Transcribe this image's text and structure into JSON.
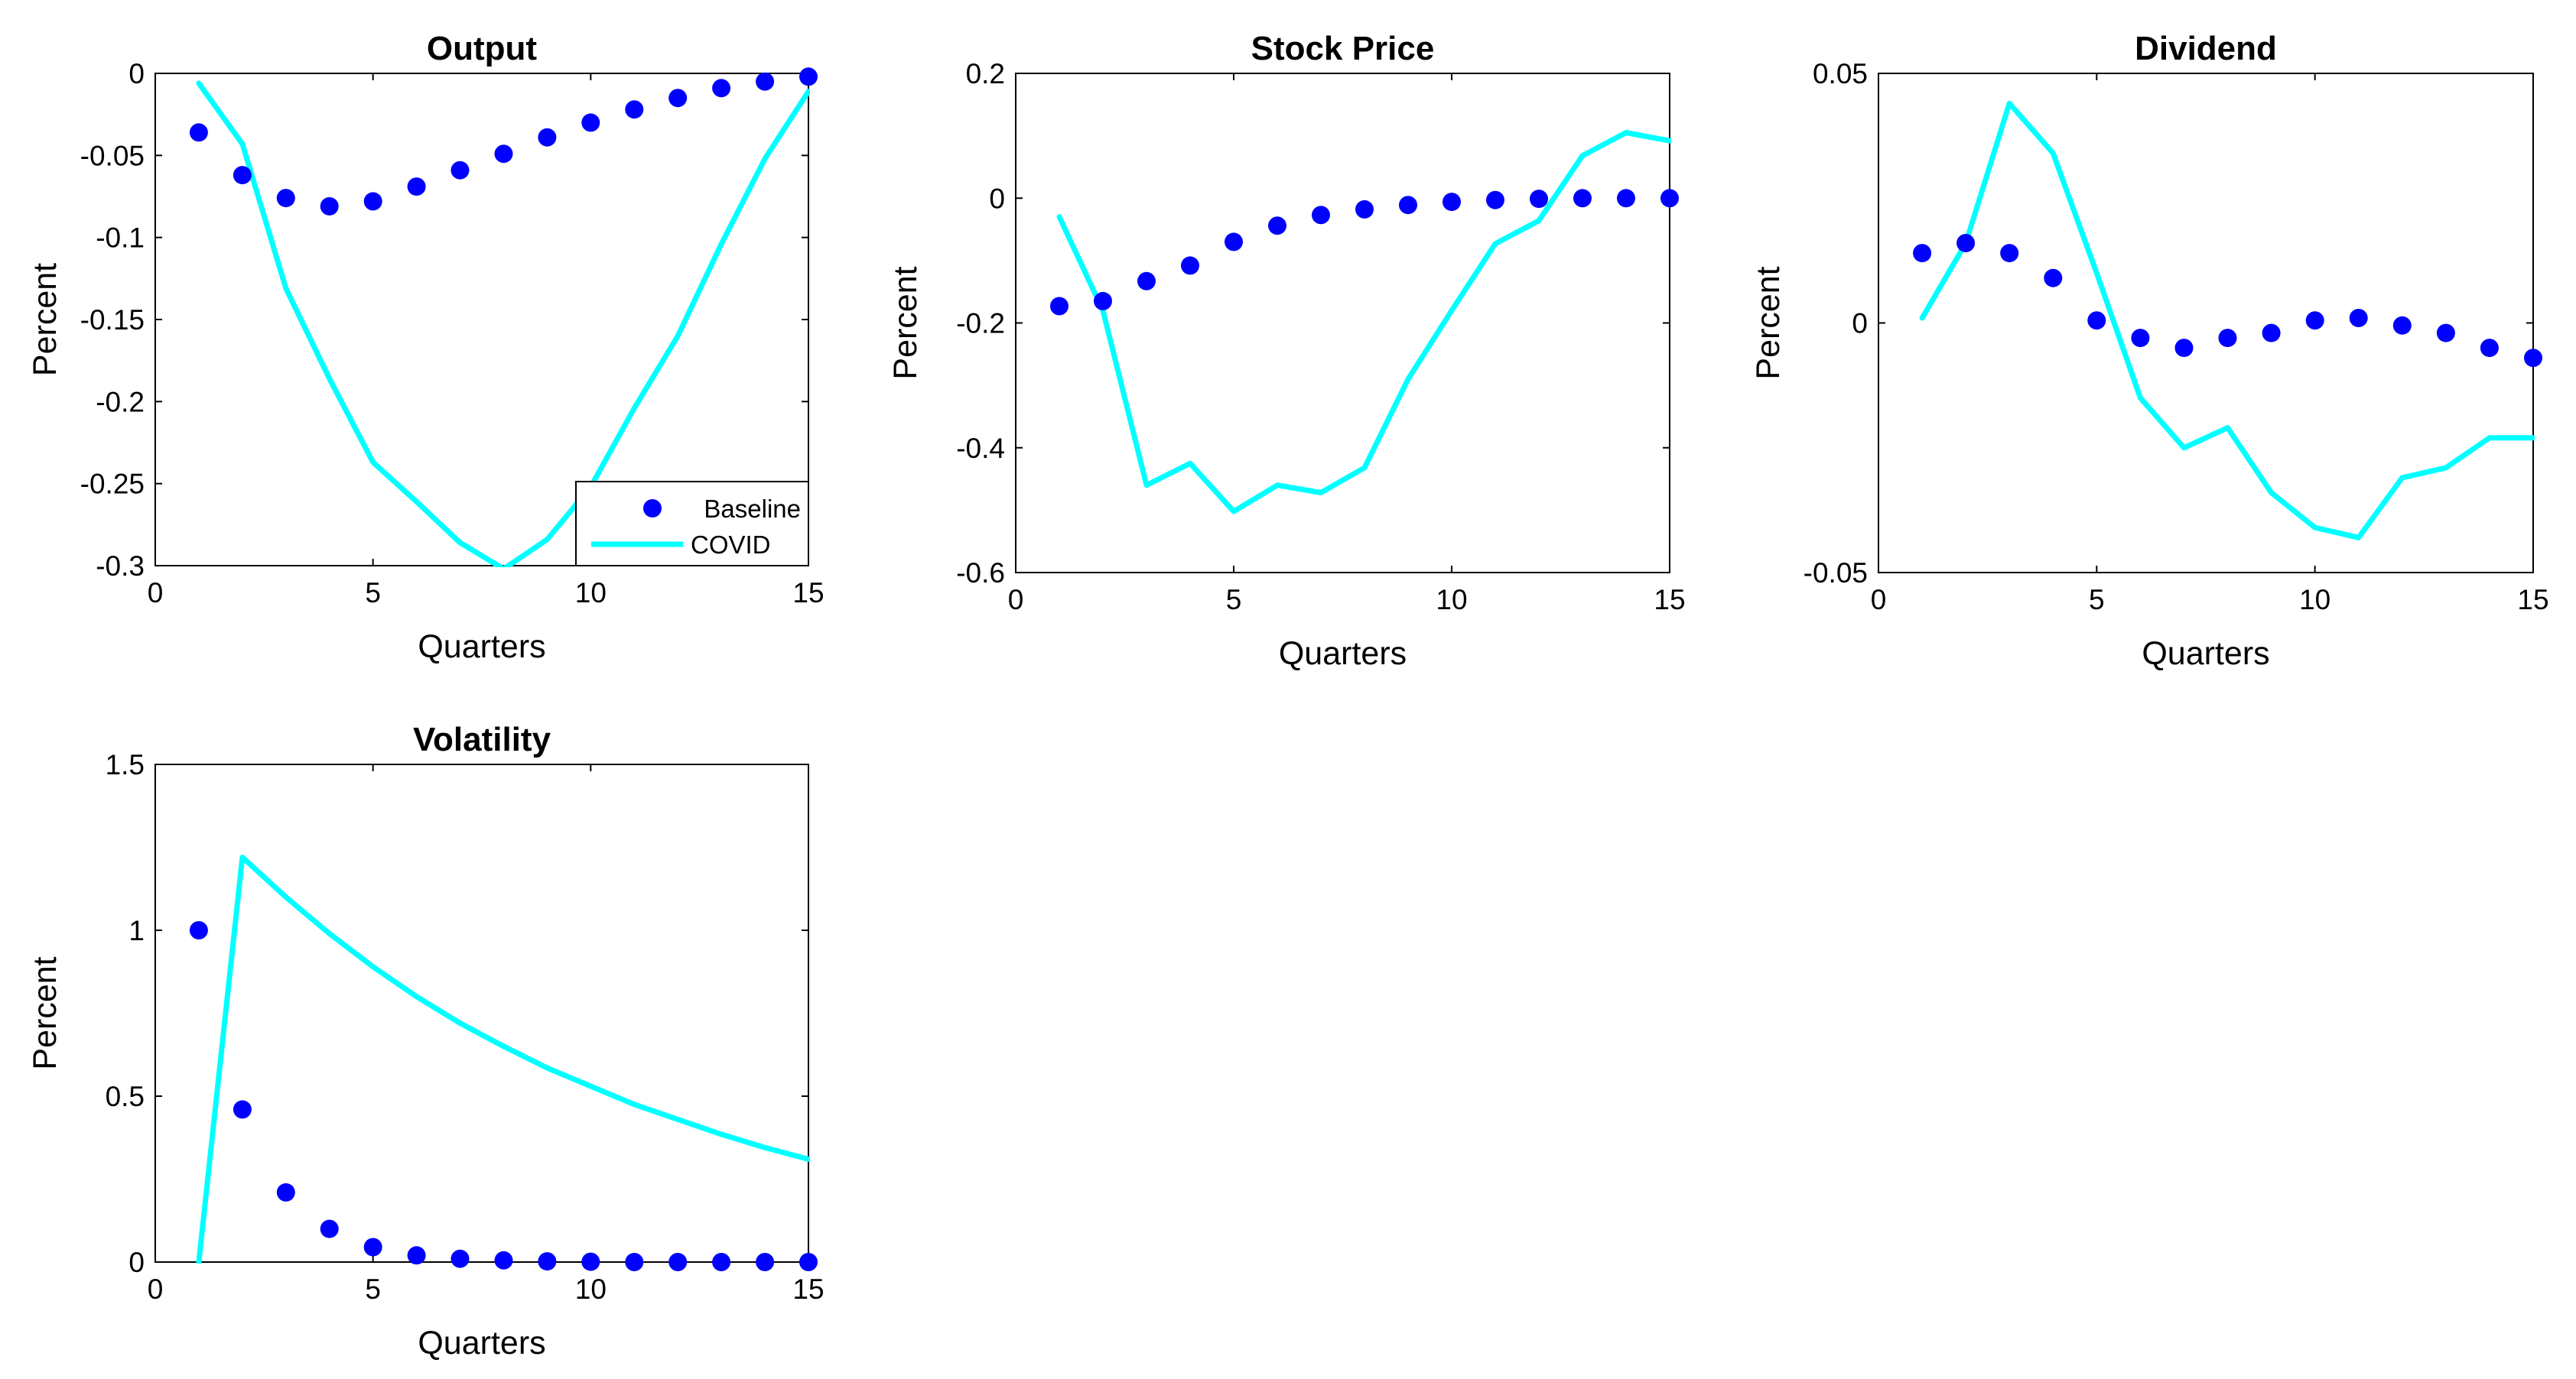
{
  "colors": {
    "baseline": "#0000ff",
    "covid": "#00ffff",
    "axes": "#000000",
    "background": "#ffffff"
  },
  "chart_data": [
    {
      "type": "line",
      "title": "Output",
      "xlabel": "Quarters",
      "ylabel": "Percent",
      "xlim": [
        0,
        15
      ],
      "ylim": [
        -0.3,
        0
      ],
      "xticks": [
        0,
        5,
        10,
        15
      ],
      "xtick_labels": [
        "0",
        "5",
        "10",
        "15"
      ],
      "yticks": [
        0,
        -0.05,
        -0.1,
        -0.15,
        -0.2,
        -0.25,
        -0.3
      ],
      "ytick_labels": [
        "0",
        "-0.05",
        "-0.1",
        "-0.15",
        "-0.2",
        "-0.25",
        "-0.3"
      ],
      "legend": {
        "location": "bottom-right",
        "entries": [
          "Baseline",
          "COVID"
        ]
      },
      "x": [
        1,
        2,
        3,
        4,
        5,
        6,
        7,
        8,
        9,
        10,
        11,
        12,
        13,
        14,
        15
      ],
      "series": [
        {
          "name": "Baseline",
          "style": "markers",
          "values": [
            -0.036,
            -0.062,
            -0.076,
            -0.081,
            -0.078,
            -0.069,
            -0.059,
            -0.049,
            -0.039,
            -0.03,
            -0.022,
            -0.015,
            -0.009,
            -0.005,
            -0.002
          ]
        },
        {
          "name": "COVID",
          "style": "line",
          "values": [
            -0.006,
            -0.043,
            -0.131,
            -0.186,
            -0.237,
            -0.261,
            -0.286,
            -0.302,
            -0.284,
            -0.252,
            -0.204,
            -0.16,
            -0.104,
            -0.052,
            -0.011
          ]
        }
      ]
    },
    {
      "type": "line",
      "title": "Stock Price",
      "xlabel": "Quarters",
      "ylabel": "Percent",
      "xlim": [
        0,
        15
      ],
      "ylim": [
        -0.6,
        0.2
      ],
      "xticks": [
        0,
        5,
        10,
        15
      ],
      "xtick_labels": [
        "0",
        "5",
        "10",
        "15"
      ],
      "yticks": [
        0.2,
        0,
        -0.2,
        -0.4,
        -0.6
      ],
      "ytick_labels": [
        "0.2",
        "0",
        "-0.2",
        "-0.4",
        "-0.6"
      ],
      "x": [
        1,
        2,
        3,
        4,
        5,
        6,
        7,
        8,
        9,
        10,
        11,
        12,
        13,
        14,
        15
      ],
      "series": [
        {
          "name": "Baseline",
          "style": "markers",
          "values": [
            -0.173,
            -0.165,
            -0.133,
            -0.108,
            -0.07,
            -0.044,
            -0.027,
            -0.018,
            -0.011,
            -0.006,
            -0.003,
            -0.001,
            0.0,
            0.0,
            0.0
          ]
        },
        {
          "name": "COVID",
          "style": "line",
          "values": [
            -0.03,
            -0.18,
            -0.46,
            -0.425,
            -0.502,
            -0.46,
            -0.472,
            -0.432,
            -0.29,
            -0.18,
            -0.073,
            -0.036,
            0.068,
            0.105,
            0.092
          ]
        }
      ]
    },
    {
      "type": "line",
      "title": "Dividend",
      "xlabel": "Quarters",
      "ylabel": "Percent",
      "xlim": [
        0,
        15
      ],
      "ylim": [
        -0.05,
        0.05
      ],
      "xticks": [
        0,
        5,
        10,
        15
      ],
      "xtick_labels": [
        "0",
        "5",
        "10",
        "15"
      ],
      "yticks": [
        0.05,
        0,
        -0.05
      ],
      "ytick_labels": [
        "0.05",
        "0",
        "-0.05"
      ],
      "x": [
        1,
        2,
        3,
        4,
        5,
        6,
        7,
        8,
        9,
        10,
        11,
        12,
        13,
        14,
        15
      ],
      "series": [
        {
          "name": "Baseline",
          "style": "markers",
          "values": [
            0.014,
            0.016,
            0.014,
            0.009,
            0.0005,
            -0.003,
            -0.005,
            -0.003,
            -0.002,
            0.0005,
            0.001,
            -0.0005,
            -0.002,
            -0.005,
            -0.007
          ]
        },
        {
          "name": "COVID",
          "style": "line",
          "values": [
            0.001,
            0.016,
            0.044,
            0.034,
            0.01,
            -0.015,
            -0.025,
            -0.021,
            -0.034,
            -0.041,
            -0.043,
            -0.031,
            -0.029,
            -0.023,
            -0.023
          ]
        }
      ]
    },
    {
      "type": "line",
      "title": "Volatility",
      "xlabel": "Quarters",
      "ylabel": "Percent",
      "xlim": [
        0,
        15
      ],
      "ylim": [
        0,
        1.5
      ],
      "xticks": [
        0,
        5,
        10,
        15
      ],
      "xtick_labels": [
        "0",
        "5",
        "10",
        "15"
      ],
      "yticks": [
        1.5,
        1,
        0.5,
        0
      ],
      "ytick_labels": [
        "1.5",
        "1",
        "0.5",
        "0"
      ],
      "x": [
        1,
        2,
        3,
        4,
        5,
        6,
        7,
        8,
        9,
        10,
        11,
        12,
        13,
        14,
        15
      ],
      "series": [
        {
          "name": "Baseline",
          "style": "markers",
          "values": [
            1.0,
            0.46,
            0.21,
            0.1,
            0.045,
            0.02,
            0.01,
            0.005,
            0.002,
            0.001,
            0.0,
            0.0,
            0.0,
            0.0,
            0.0
          ]
        },
        {
          "name": "COVID",
          "style": "line",
          "values": [
            0.0,
            1.22,
            1.1,
            0.99,
            0.89,
            0.8,
            0.72,
            0.65,
            0.585,
            0.53,
            0.475,
            0.43,
            0.385,
            0.345,
            0.31
          ]
        }
      ]
    }
  ]
}
